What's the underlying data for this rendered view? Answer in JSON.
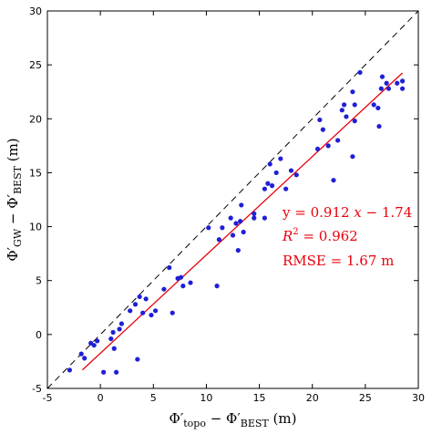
{
  "chart_data": {
    "type": "scatter",
    "title": "",
    "xlabel": {
      "main": "Φ′",
      "sub1": "topo",
      "mid": " − Φ′",
      "sub2": "BEST",
      "tail": " (m)"
    },
    "ylabel": {
      "main": "Φ′",
      "sub1": "GW",
      "mid": " − Φ′",
      "sub2": "BEST",
      "tail": " (m)"
    },
    "xlim": [
      -5,
      30
    ],
    "ylim": [
      -5,
      30
    ],
    "xticks": [
      "-5",
      "0",
      "5",
      "10",
      "15",
      "20",
      "25",
      "30"
    ],
    "yticks": [
      "-5",
      "0",
      "5",
      "10",
      "15",
      "20",
      "25",
      "30"
    ],
    "grid": false,
    "point_color": "#1f1fd6",
    "fit_color": "#e8000b",
    "reference_line": {
      "style": "dashed",
      "color": "#000000",
      "from": [
        -5,
        -5
      ],
      "to": [
        30,
        30
      ]
    },
    "fit_line": {
      "slope": 0.912,
      "intercept": -1.74,
      "x_range": [
        -1.7,
        28.5
      ]
    },
    "annotations": {
      "eq_lhs": "y = 0.912 ",
      "eq_var": "x",
      "eq_rhs": " − 1.74",
      "r2_lhs": "R",
      "r2_sup": "2",
      "r2_rhs": " = 0.962",
      "rmse": "RMSE = 1.67 m"
    },
    "points": [
      [
        -2.9,
        -3.3
      ],
      [
        -1.8,
        -1.8
      ],
      [
        -1.5,
        -2.2
      ],
      [
        -0.9,
        -0.8
      ],
      [
        -0.6,
        -1.0
      ],
      [
        -0.3,
        -0.6
      ],
      [
        0.3,
        -3.5
      ],
      [
        1.0,
        -0.4
      ],
      [
        1.2,
        0.2
      ],
      [
        1.3,
        -1.3
      ],
      [
        1.5,
        -3.5
      ],
      [
        1.8,
        0.5
      ],
      [
        2.0,
        1.0
      ],
      [
        2.8,
        2.2
      ],
      [
        3.3,
        2.8
      ],
      [
        3.5,
        -2.3
      ],
      [
        3.7,
        3.5
      ],
      [
        4.0,
        2.0
      ],
      [
        4.3,
        3.3
      ],
      [
        4.8,
        1.8
      ],
      [
        5.2,
        2.2
      ],
      [
        6.0,
        4.2
      ],
      [
        6.5,
        6.2
      ],
      [
        6.8,
        2.0
      ],
      [
        7.3,
        5.2
      ],
      [
        7.6,
        5.3
      ],
      [
        7.8,
        4.5
      ],
      [
        8.5,
        4.8
      ],
      [
        10.2,
        9.9
      ],
      [
        11.0,
        4.5
      ],
      [
        11.2,
        8.8
      ],
      [
        11.5,
        9.9
      ],
      [
        12.3,
        10.8
      ],
      [
        12.5,
        9.2
      ],
      [
        12.8,
        10.3
      ],
      [
        13.0,
        7.8
      ],
      [
        13.2,
        10.5
      ],
      [
        13.3,
        12.0
      ],
      [
        13.5,
        9.5
      ],
      [
        14.5,
        10.8
      ],
      [
        14.5,
        11.2
      ],
      [
        15.5,
        10.8
      ],
      [
        15.5,
        13.5
      ],
      [
        15.8,
        14.0
      ],
      [
        16.0,
        15.8
      ],
      [
        16.2,
        13.8
      ],
      [
        16.6,
        15.0
      ],
      [
        17.0,
        16.3
      ],
      [
        17.5,
        13.5
      ],
      [
        18.0,
        15.2
      ],
      [
        18.5,
        14.8
      ],
      [
        20.5,
        17.2
      ],
      [
        20.7,
        19.9
      ],
      [
        21.0,
        19.0
      ],
      [
        21.5,
        17.5
      ],
      [
        22.0,
        14.3
      ],
      [
        22.4,
        18.0
      ],
      [
        22.8,
        20.8
      ],
      [
        23.0,
        21.3
      ],
      [
        23.2,
        20.2
      ],
      [
        23.8,
        16.5
      ],
      [
        23.8,
        22.5
      ],
      [
        24.0,
        21.3
      ],
      [
        24.0,
        19.8
      ],
      [
        24.5,
        24.3
      ],
      [
        25.8,
        21.3
      ],
      [
        26.2,
        21.0
      ],
      [
        26.3,
        19.3
      ],
      [
        26.5,
        22.8
      ],
      [
        26.6,
        23.9
      ],
      [
        27.0,
        23.3
      ],
      [
        27.2,
        22.8
      ],
      [
        28.0,
        23.3
      ],
      [
        28.5,
        23.5
      ],
      [
        28.5,
        22.8
      ]
    ]
  }
}
